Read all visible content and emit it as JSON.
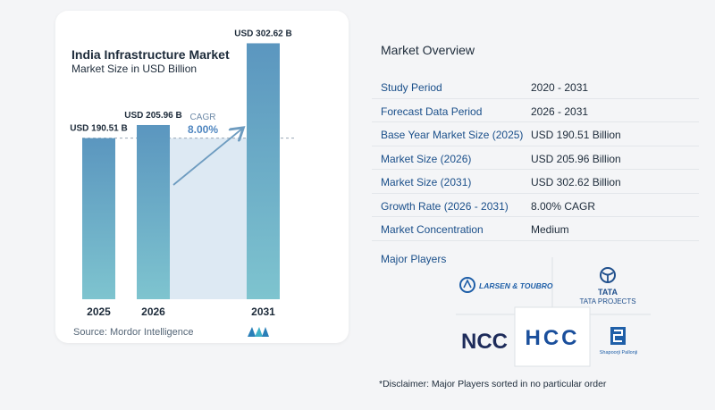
{
  "chart_data": {
    "type": "bar",
    "title": "India Infrastructure Market",
    "subtitle": "Market Size in USD Billion",
    "categories": [
      "2025",
      "2026",
      "2031"
    ],
    "values": [
      190.51,
      205.96,
      302.62
    ],
    "value_labels": [
      "USD 190.51 B",
      "USD 205.96 B",
      "USD 302.62 B"
    ],
    "cagr_label": "CAGR",
    "cagr_value": "8.00%",
    "ylim": [
      0,
      320
    ],
    "colors": {
      "bar_top": "#5b96bf",
      "bar_bottom": "#7ec4cf",
      "band": "#dde9f3",
      "arrow": "#6e9cc0"
    }
  },
  "source": "Source:  Mordor Intelligence",
  "overview": {
    "title": "Market Overview",
    "rows": [
      {
        "label": "Study Period",
        "value": "2020 - 2031"
      },
      {
        "label": "Forecast Data Period",
        "value": "2026 - 2031"
      },
      {
        "label": "Base Year Market Size (2025)",
        "value": "USD 190.51 Billion"
      },
      {
        "label": "Market Size (2026)",
        "value": "USD 205.96 Billion"
      },
      {
        "label": "Market Size (2031)",
        "value": "USD 302.62 Billion"
      },
      {
        "label": "Growth Rate (2026 - 2031)",
        "value": "8.00% CAGR"
      },
      {
        "label": "Market Concentration",
        "value": "Medium"
      }
    ],
    "players_label": "Major Players",
    "players": [
      {
        "name": "LARSEN & TOUBRO",
        "icon": "lt-logo"
      },
      {
        "name": "TATA",
        "sub": "TATA PROJECTS",
        "icon": "tata-logo"
      },
      {
        "name": "NCC",
        "icon": "ncc-logo"
      },
      {
        "name": "HCC",
        "icon": "hcc-logo"
      },
      {
        "name": "Shapoorji Pallonji",
        "icon": "sp-logo"
      }
    ]
  },
  "disclaimer": "*Disclaimer: Major Players sorted in no particular order"
}
